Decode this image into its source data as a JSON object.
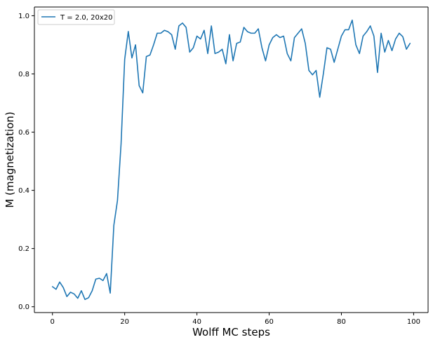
{
  "chart_data": {
    "type": "line",
    "title": "",
    "xlabel": "Wolff MC steps",
    "ylabel": "M (magnetization)",
    "xlim": [
      -5,
      104
    ],
    "ylim": [
      -0.02,
      1.03
    ],
    "x_ticks": [
      0,
      20,
      40,
      60,
      80,
      100
    ],
    "x_tick_labels": [
      "0",
      "20",
      "40",
      "60",
      "80",
      "100"
    ],
    "y_ticks": [
      0.0,
      0.2,
      0.4,
      0.6,
      0.8,
      1.0
    ],
    "y_tick_labels": [
      "0.0",
      "0.2",
      "0.4",
      "0.6",
      "0.8",
      "1.0"
    ],
    "grid": false,
    "legend_position": "top-left",
    "colors": {
      "series_line": "#1f77b4",
      "axes": "#000000",
      "legend_border": "#cccccc"
    },
    "series": [
      {
        "name": "T = 2.0, 20x20",
        "x": [
          0,
          1,
          2,
          3,
          4,
          5,
          6,
          7,
          8,
          9,
          10,
          11,
          12,
          13,
          14,
          15,
          16,
          17,
          18,
          19,
          20,
          21,
          22,
          23,
          24,
          25,
          26,
          27,
          28,
          29,
          30,
          31,
          32,
          33,
          34,
          35,
          36,
          37,
          38,
          39,
          40,
          41,
          42,
          43,
          44,
          45,
          46,
          47,
          48,
          49,
          50,
          51,
          52,
          53,
          54,
          55,
          56,
          57,
          58,
          59,
          60,
          61,
          62,
          63,
          64,
          65,
          66,
          67,
          68,
          69,
          70,
          71,
          72,
          73,
          74,
          75,
          76,
          77,
          78,
          79,
          80,
          81,
          82,
          83,
          84,
          85,
          86,
          87,
          88,
          89,
          90,
          91,
          92,
          93,
          94,
          95,
          96,
          97,
          98,
          99
        ],
        "values": [
          0.069,
          0.06,
          0.085,
          0.066,
          0.035,
          0.05,
          0.044,
          0.029,
          0.055,
          0.025,
          0.031,
          0.055,
          0.095,
          0.098,
          0.09,
          0.114,
          0.047,
          0.28,
          0.365,
          0.56,
          0.85,
          0.946,
          0.855,
          0.9,
          0.76,
          0.735,
          0.86,
          0.865,
          0.9,
          0.94,
          0.94,
          0.95,
          0.945,
          0.935,
          0.885,
          0.965,
          0.975,
          0.96,
          0.875,
          0.89,
          0.93,
          0.92,
          0.95,
          0.87,
          0.965,
          0.87,
          0.875,
          0.885,
          0.835,
          0.935,
          0.845,
          0.905,
          0.91,
          0.96,
          0.945,
          0.94,
          0.94,
          0.955,
          0.89,
          0.845,
          0.9,
          0.925,
          0.935,
          0.925,
          0.93,
          0.87,
          0.845,
          0.925,
          0.94,
          0.955,
          0.905,
          0.812,
          0.797,
          0.812,
          0.72,
          0.8,
          0.89,
          0.885,
          0.84,
          0.885,
          0.93,
          0.952,
          0.952,
          0.985,
          0.9,
          0.87,
          0.93,
          0.945,
          0.965,
          0.93,
          0.805,
          0.94,
          0.875,
          0.915,
          0.88,
          0.92,
          0.94,
          0.928,
          0.885,
          0.905
        ]
      }
    ]
  }
}
